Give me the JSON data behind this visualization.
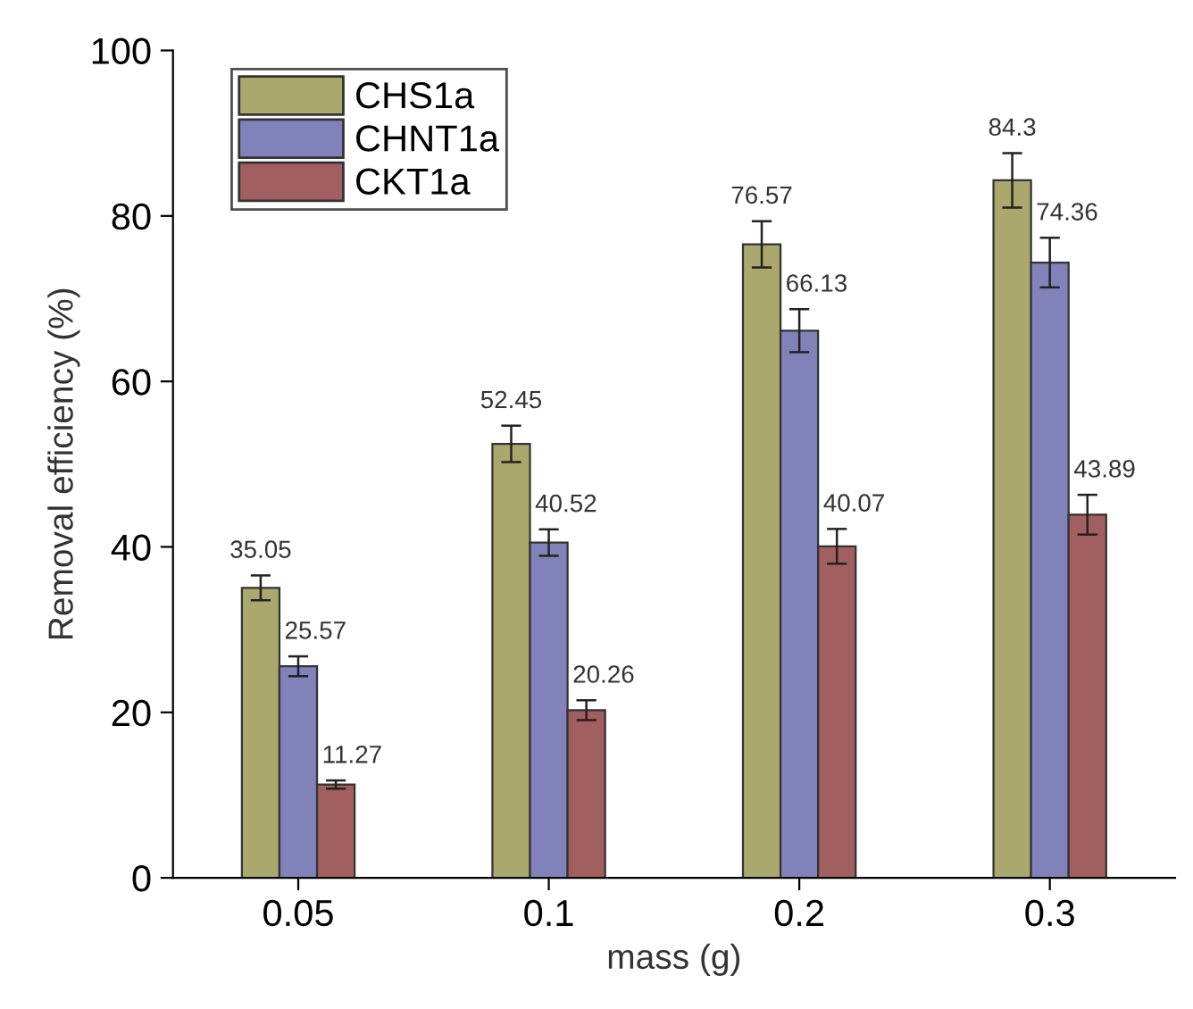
{
  "chart_data": {
    "type": "bar",
    "xlabel": "mass (g)",
    "ylabel": "Removal efficiency (%)",
    "categories": [
      "0.05",
      "0.1",
      "0.2",
      "0.3"
    ],
    "series": [
      {
        "name": "CHS1a",
        "color": "#aaa86d",
        "values": [
          35.05,
          52.45,
          76.57,
          84.3
        ],
        "errors": [
          1.5,
          2.2,
          2.8,
          3.3
        ]
      },
      {
        "name": "CHNT1a",
        "color": "#8282bb",
        "values": [
          25.57,
          40.52,
          66.13,
          74.36
        ],
        "errors": [
          1.2,
          1.6,
          2.6,
          3.0
        ]
      },
      {
        "name": "CKT1a",
        "color": "#a25f5f",
        "values": [
          11.27,
          20.26,
          40.07,
          43.89
        ],
        "errors": [
          0.5,
          1.2,
          2.1,
          2.4
        ]
      }
    ],
    "ylim": [
      0,
      100
    ],
    "yticks": [
      0,
      20,
      40,
      60,
      80,
      100
    ],
    "data_labels": true,
    "legend": "top left",
    "grid": false
  }
}
